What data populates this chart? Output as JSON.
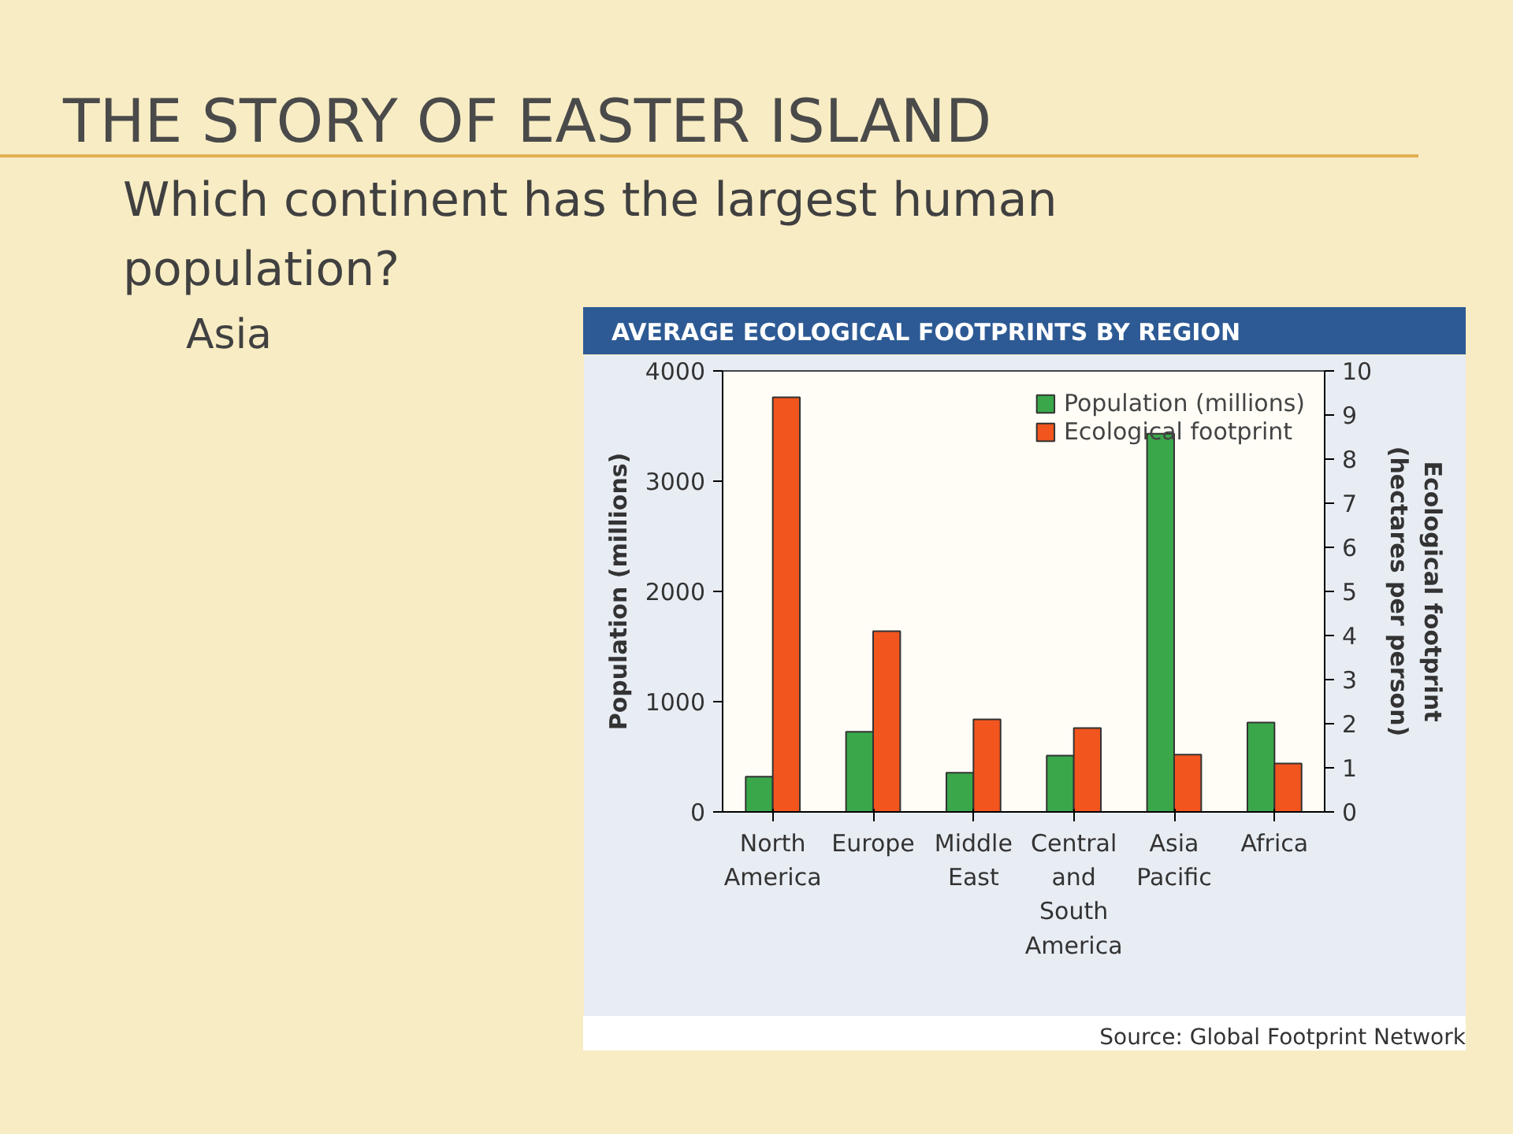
{
  "chart_data": {
    "type": "bar",
    "title": "THE STORY OF EASTER ISLAND",
    "subtitle": "AVERAGE ECOLOGICAL FOOTPRINTS BY REGION",
    "annotations": [
      "Which continent has the largest human population?",
      "Asia",
      "Source: Global Footprint Network"
    ],
    "categories": [
      "North America",
      "Europe",
      "Middle East",
      "Central and South America",
      "Asia Pacific",
      "Africa"
    ],
    "ylabel": "Population (millions)",
    "y2label": "Ecological footprint (hectares per person)",
    "ylim": [
      0,
      4000
    ],
    "yticks": [
      0,
      1000,
      2000,
      3000,
      4000
    ],
    "y2lim": [
      0,
      10
    ],
    "y2ticks": [
      0,
      1,
      2,
      3,
      4,
      5,
      6,
      7,
      8,
      9,
      10
    ],
    "series": [
      {
        "name": "Population (millions)",
        "color": "#3aa84a",
        "values": [
          320,
          726,
          356,
          510,
          3430,
          810
        ]
      },
      {
        "name": "Ecological footprint",
        "color": "#f2551d",
        "axis": "y2",
        "values": [
          9.4,
          4.1,
          2.1,
          1.9,
          1.3,
          1.1
        ]
      }
    ],
    "legend": "top right",
    "grid": false
  }
}
